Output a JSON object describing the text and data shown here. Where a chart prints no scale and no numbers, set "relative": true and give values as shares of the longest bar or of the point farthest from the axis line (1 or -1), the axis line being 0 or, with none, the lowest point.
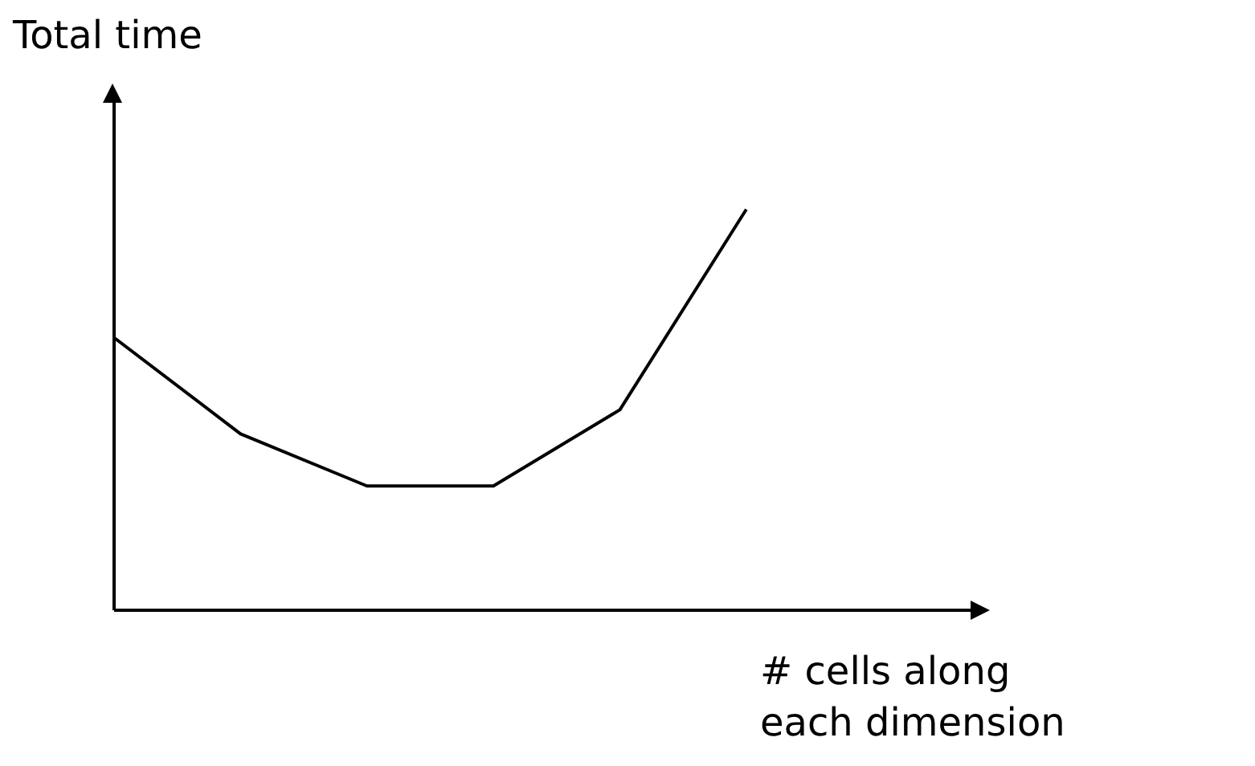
{
  "chart_data": {
    "type": "line",
    "relative": true,
    "ylabel": "Total time",
    "xlabel": "# cells along each dimension",
    "categories": [
      null,
      null,
      null,
      null,
      null,
      null
    ],
    "series": [
      {
        "color": "#000000",
        "values": [
          0.68,
          0.44,
          0.31,
          0.31,
          0.5,
          1
        ]
      }
    ],
    "marker": "none",
    "line_style": "solid",
    "grid": false,
    "legend": false
  }
}
